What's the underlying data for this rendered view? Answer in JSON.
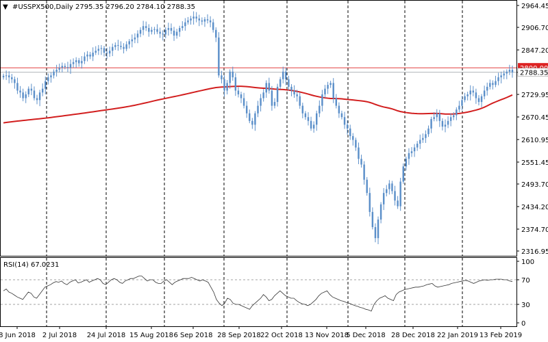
{
  "header": {
    "menu_glyph": "▼",
    "text": "#USSPX500,Daily  2795.35 2796.20 2784.10 2788.35"
  },
  "rsi_header": {
    "text": "RSI(14) 67.0231"
  },
  "colors": {
    "up": "#5b8fc9",
    "down": "#5b8fc9",
    "ma": "#d21e1e",
    "level_line": "#e23b3b",
    "level_tag_bg": "#dd2222",
    "grid_v": "#000000",
    "rsi_line": "#333333",
    "rsi_level": "#a0a0a0"
  },
  "chart_data": [
    {
      "type": "candlestick",
      "symbol": "#USSPX500",
      "timeframe": "Daily",
      "ohlc_last": {
        "open": 2795.35,
        "high": 2796.2,
        "low": 2784.1,
        "close": 2788.35
      },
      "ylim": [
        2316.95,
        2964.45
      ],
      "y_ticks": [
        "2964.45",
        "2906.70",
        "2847.20",
        "2788.35",
        "2729.95",
        "2670.45",
        "2610.95",
        "2551.45",
        "2493.70",
        "2434.20",
        "2374.70",
        "2316.95"
      ],
      "level": {
        "value": 2800.0,
        "label": "2800.00"
      },
      "current_price_label": "2788.35",
      "x_labels": [
        "8 Jun 2018",
        "2 Jul 2018",
        "24 Jul 2018",
        "15 Aug 2018",
        "6 Sep 2018",
        "28 Sep 2018",
        "22 Oct 2018",
        "13 Nov 2018",
        "5 Dec 2018",
        "28 Dec 2018",
        "22 Jan 2019",
        "13 Feb 2019"
      ],
      "closes": [
        2779,
        2780,
        2775,
        2770,
        2760,
        2740,
        2735,
        2720,
        2730,
        2745,
        2740,
        2720,
        2715,
        2735,
        2745,
        2765,
        2775,
        2780,
        2790,
        2795,
        2800,
        2805,
        2802,
        2800,
        2810,
        2815,
        2820,
        2812,
        2818,
        2830,
        2835,
        2830,
        2840,
        2845,
        2850,
        2852,
        2840,
        2838,
        2845,
        2855,
        2860,
        2858,
        2855,
        2850,
        2862,
        2870,
        2875,
        2880,
        2890,
        2900,
        2910,
        2905,
        2895,
        2900,
        2902,
        2895,
        2890,
        2888,
        2900,
        2905,
        2898,
        2885,
        2895,
        2905,
        2910,
        2920,
        2925,
        2930,
        2935,
        2930,
        2925,
        2922,
        2928,
        2925,
        2920,
        2900,
        2880,
        2780,
        2770,
        2740,
        2760,
        2790,
        2775,
        2740,
        2730,
        2720,
        2700,
        2680,
        2660,
        2650,
        2680,
        2700,
        2720,
        2735,
        2760,
        2740,
        2700,
        2710,
        2750,
        2770,
        2790,
        2770,
        2750,
        2740,
        2730,
        2725,
        2700,
        2680,
        2670,
        2660,
        2640,
        2650,
        2680,
        2700,
        2730,
        2745,
        2755,
        2760,
        2720,
        2700,
        2680,
        2670,
        2650,
        2640,
        2620,
        2610,
        2590,
        2560,
        2545,
        2505,
        2470,
        2420,
        2380,
        2351,
        2400,
        2440,
        2470,
        2480,
        2495,
        2475,
        2450,
        2435,
        2500,
        2540,
        2560,
        2575,
        2580,
        2590,
        2600,
        2610,
        2615,
        2625,
        2640,
        2665,
        2670,
        2680,
        2660,
        2645,
        2650,
        2660,
        2670,
        2675,
        2690,
        2700,
        2715,
        2725,
        2730,
        2740,
        2735,
        2720,
        2710,
        2725,
        2740,
        2750,
        2760,
        2755,
        2765,
        2775,
        2780,
        2785,
        2790,
        2795,
        2788
      ],
      "sma_period": 200,
      "sma_start": 2655,
      "sma_end": 2752
    },
    {
      "type": "line",
      "indicator": "RSI",
      "period": 14,
      "current": 67.0231,
      "ylim": [
        0,
        100
      ],
      "y_ticks": [
        "100",
        "70",
        "30",
        "0"
      ],
      "levels": [
        70,
        30
      ],
      "values": [
        52,
        55,
        50,
        48,
        45,
        42,
        40,
        38,
        44,
        50,
        48,
        42,
        40,
        46,
        52,
        58,
        60,
        62,
        65,
        67,
        66,
        68,
        64,
        62,
        66,
        68,
        70,
        65,
        66,
        68,
        70,
        66,
        68,
        70,
        72,
        70,
        64,
        62,
        66,
        70,
        72,
        70,
        66,
        64,
        68,
        70,
        72,
        72,
        74,
        76,
        76,
        72,
        68,
        70,
        70,
        66,
        64,
        64,
        68,
        70,
        66,
        62,
        66,
        68,
        70,
        72,
        72,
        72,
        74,
        72,
        70,
        68,
        70,
        68,
        66,
        58,
        50,
        38,
        32,
        28,
        32,
        40,
        38,
        32,
        30,
        30,
        28,
        26,
        24,
        22,
        28,
        32,
        36,
        40,
        46,
        42,
        36,
        38,
        44,
        48,
        52,
        48,
        44,
        42,
        40,
        40,
        36,
        33,
        31,
        30,
        28,
        30,
        34,
        38,
        44,
        48,
        50,
        52,
        46,
        42,
        40,
        38,
        36,
        35,
        33,
        32,
        30,
        28,
        27,
        25,
        24,
        22,
        21,
        19,
        30,
        36,
        40,
        42,
        44,
        40,
        38,
        36,
        46,
        50,
        52,
        54,
        55,
        56,
        57,
        58,
        58,
        59,
        60,
        62,
        63,
        64,
        60,
        58,
        59,
        60,
        61,
        62,
        64,
        65,
        66,
        67,
        68,
        69,
        68,
        66,
        64,
        66,
        68,
        69,
        70,
        69,
        70,
        70,
        71,
        71,
        71,
        70,
        70,
        68,
        67
      ]
    }
  ]
}
